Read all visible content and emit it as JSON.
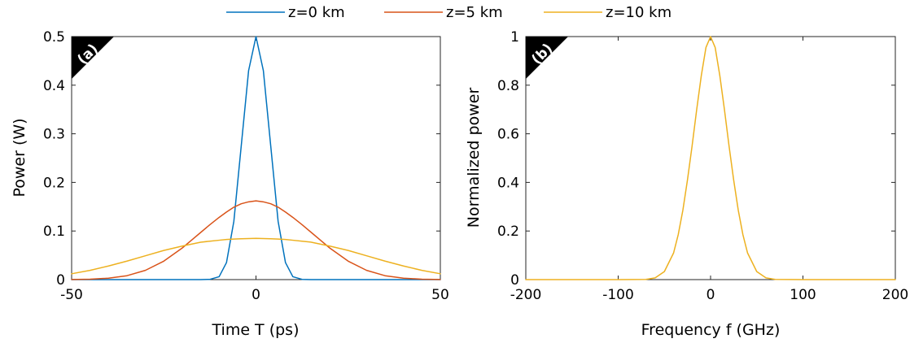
{
  "legend": {
    "entries": [
      {
        "label": "z=0 km",
        "color": "#0072BD"
      },
      {
        "label": "z=5 km",
        "color": "#D95319"
      },
      {
        "label": "z=10 km",
        "color": "#EDB120"
      }
    ]
  },
  "chart_data": [
    {
      "type": "line",
      "panel_label": "(a)",
      "xlabel": "Time T (ps)",
      "ylabel": "Power (W)",
      "xlim": [
        -50,
        50
      ],
      "ylim": [
        0,
        0.5
      ],
      "xticks": [
        -50,
        0,
        50
      ],
      "xtick_labels": [
        "-50",
        "0",
        "50"
      ],
      "yticks": [
        0,
        0.1,
        0.2,
        0.3,
        0.4,
        0.5
      ],
      "ytick_labels": [
        "0",
        "0.1",
        "0.2",
        "0.3",
        "0.4",
        "0.5"
      ],
      "grid": false,
      "x": [
        -50,
        -45,
        -40,
        -35,
        -30,
        -25,
        -20,
        -17.5,
        -15,
        -12.5,
        -10,
        -8,
        -6,
        -4,
        -2,
        0,
        2,
        4,
        6,
        8,
        10,
        12.5,
        15,
        17.5,
        20,
        25,
        30,
        35,
        40,
        45,
        50
      ],
      "series": [
        {
          "name": "z=0 km",
          "color": "#0072BD",
          "values": [
            0,
            0,
            0,
            0,
            0,
            0,
            0,
            0,
            0,
            0.0005,
            0.006,
            0.035,
            0.12,
            0.275,
            0.43,
            0.5,
            0.43,
            0.275,
            0.12,
            0.035,
            0.006,
            0.0005,
            0,
            0,
            0,
            0,
            0,
            0,
            0,
            0,
            0
          ]
        },
        {
          "name": "z=5 km",
          "color": "#D95319",
          "values": [
            0.0002,
            0.0008,
            0.003,
            0.008,
            0.019,
            0.038,
            0.065,
            0.081,
            0.097,
            0.113,
            0.128,
            0.139,
            0.149,
            0.156,
            0.16,
            0.162,
            0.16,
            0.156,
            0.149,
            0.139,
            0.128,
            0.113,
            0.097,
            0.081,
            0.065,
            0.038,
            0.019,
            0.008,
            0.003,
            0.0008,
            0.0002
          ]
        },
        {
          "name": "z=10 km",
          "color": "#EDB120",
          "values": [
            0.012,
            0.019,
            0.028,
            0.038,
            0.049,
            0.06,
            0.069,
            0.073,
            0.077,
            0.079,
            0.081,
            0.0825,
            0.0835,
            0.084,
            0.0845,
            0.0848,
            0.0845,
            0.084,
            0.0835,
            0.0825,
            0.081,
            0.079,
            0.077,
            0.073,
            0.069,
            0.06,
            0.049,
            0.038,
            0.028,
            0.019,
            0.012
          ]
        }
      ]
    },
    {
      "type": "line",
      "panel_label": "(b)",
      "xlabel": "Frequency f (GHz)",
      "ylabel": "Normalized power",
      "xlim": [
        -200,
        200
      ],
      "ylim": [
        0,
        1
      ],
      "xticks": [
        -200,
        -100,
        0,
        100,
        200
      ],
      "xtick_labels": [
        "-200",
        "-100",
        "0",
        "100",
        "200"
      ],
      "yticks": [
        0,
        0.2,
        0.4,
        0.6,
        0.8,
        1
      ],
      "ytick_labels": [
        "0",
        "0.2",
        "0.4",
        "0.6",
        "0.8",
        "1"
      ],
      "grid": false,
      "x": [
        -200,
        -100,
        -70,
        -60,
        -50,
        -40,
        -35,
        -30,
        -25,
        -20,
        -15,
        -10,
        -5,
        0,
        5,
        10,
        15,
        20,
        25,
        30,
        35,
        40,
        50,
        60,
        70,
        100,
        200
      ],
      "series": [
        {
          "name": "z=10 km",
          "color": "#EDB120",
          "values": [
            0,
            0,
            0.001,
            0.007,
            0.033,
            0.11,
            0.185,
            0.285,
            0.41,
            0.55,
            0.7,
            0.84,
            0.955,
            1,
            0.955,
            0.84,
            0.7,
            0.55,
            0.41,
            0.285,
            0.185,
            0.11,
            0.033,
            0.007,
            0.001,
            0,
            0
          ]
        }
      ]
    }
  ]
}
